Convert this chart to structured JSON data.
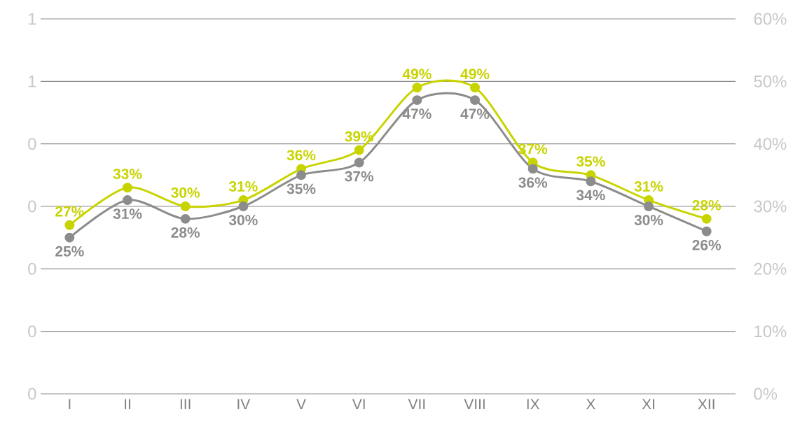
{
  "chart_data": {
    "type": "line",
    "categories": [
      "I",
      "II",
      "III",
      "IV",
      "V",
      "VI",
      "VII",
      "VIII",
      "IX",
      "X",
      "XI",
      "XII"
    ],
    "series": [
      {
        "color": "#c8d400",
        "axis": "y2",
        "values": [
          27,
          33,
          30,
          31,
          36,
          39,
          49,
          49,
          37,
          35,
          31,
          28
        ],
        "value_labels": [
          "27%",
          "33%",
          "30%",
          "31%",
          "36%",
          "39%",
          "49%",
          "49%",
          "37%",
          "35%",
          "31%",
          "28%"
        ]
      },
      {
        "color": "#8c8c8c",
        "axis": "y2",
        "values": [
          25,
          31,
          28,
          30,
          35,
          37,
          47,
          47,
          36,
          34,
          30,
          26
        ],
        "value_labels": [
          "25%",
          "31%",
          "28%",
          "30%",
          "35%",
          "37%",
          "47%",
          "47%",
          "36%",
          "34%",
          "30%",
          "26%"
        ]
      }
    ],
    "ylim": [
      0,
      0.6
    ],
    "yticks": [
      0,
      {
        "value": 0.1,
        "label": "0"
      },
      {
        "value": 0.2,
        "label": "0"
      },
      {
        "value": 0.3,
        "label": "0"
      },
      {
        "value": 0.4,
        "label": "0"
      },
      {
        "value": 0.5,
        "label": "1"
      },
      {
        "value": 0.6,
        "label": "1"
      }
    ],
    "y2lim": [
      0,
      60
    ],
    "y2ticks": [
      {
        "value": 0,
        "label": "0%"
      },
      {
        "value": 10,
        "label": "10%"
      },
      {
        "value": 20,
        "label": "20%"
      },
      {
        "value": 30,
        "label": "30%"
      },
      {
        "value": 40,
        "label": "40%"
      },
      {
        "value": 50,
        "label": "50%"
      },
      {
        "value": 60,
        "label": "60%"
      }
    ],
    "grid": "y",
    "marker": "circle",
    "line_style": "solid",
    "legend": false
  }
}
